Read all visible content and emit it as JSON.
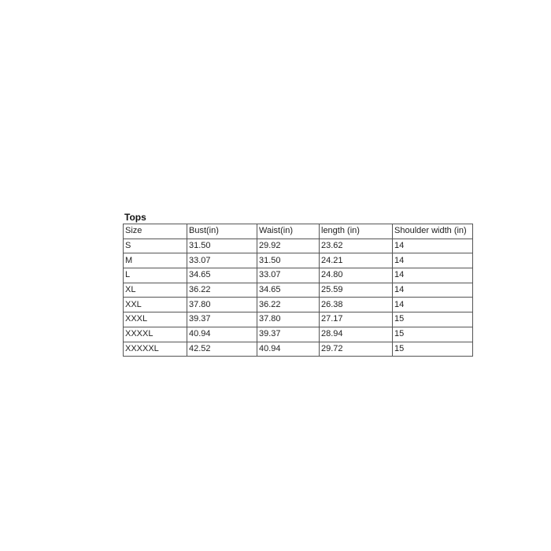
{
  "title": "Tops",
  "table": {
    "headers": [
      "Size",
      "Bust(in)",
      "Waist(in)",
      "length (in)",
      "Shoulder width (in)"
    ],
    "rows": [
      [
        "S",
        "31.50",
        "29.92",
        "23.62",
        "14"
      ],
      [
        "M",
        "33.07",
        "31.50",
        "24.21",
        "14"
      ],
      [
        "L",
        "34.65",
        "33.07",
        "24.80",
        "14"
      ],
      [
        "XL",
        "36.22",
        "34.65",
        "25.59",
        "14"
      ],
      [
        "XXL",
        "37.80",
        "36.22",
        "26.38",
        "14"
      ],
      [
        "XXXL",
        "39.37",
        "37.80",
        "27.17",
        "15"
      ],
      [
        "XXXXL",
        "40.94",
        "39.37",
        "28.94",
        "15"
      ],
      [
        "XXXXXL",
        "42.52",
        "40.94",
        "29.72",
        "15"
      ]
    ]
  }
}
